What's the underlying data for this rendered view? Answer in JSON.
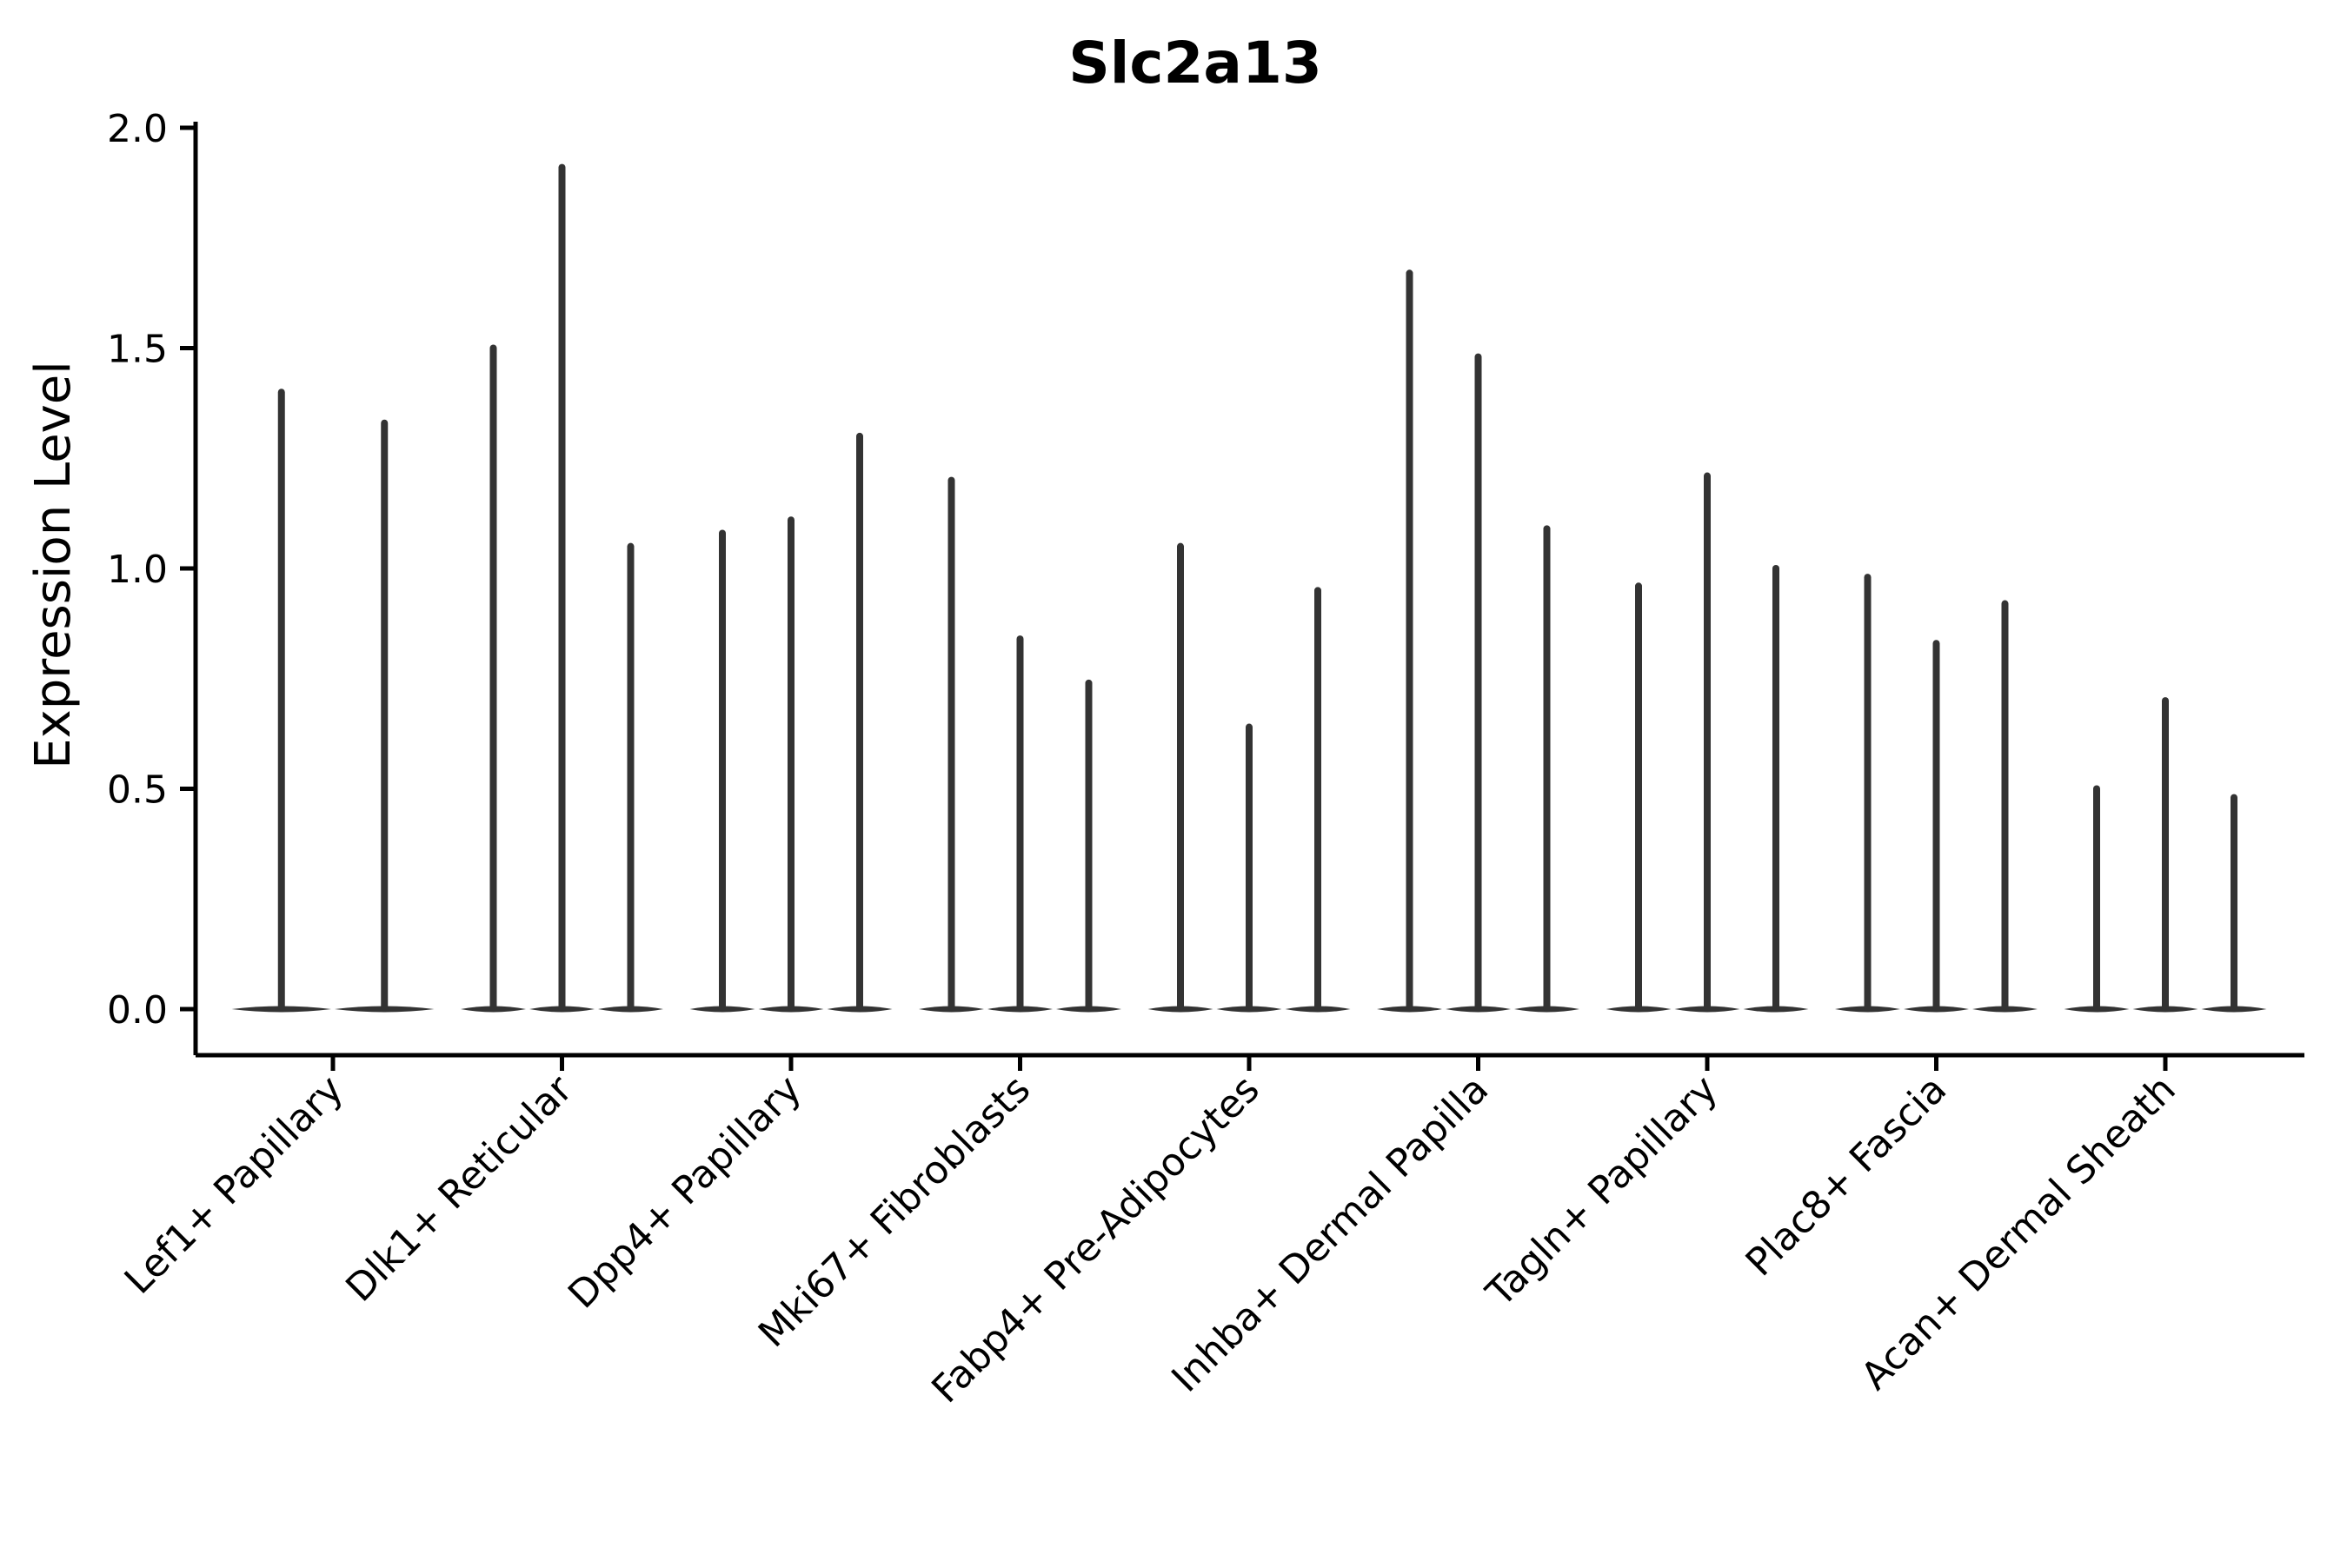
{
  "chart_data": {
    "type": "violin",
    "title": "Slc2a13",
    "xlabel": "",
    "ylabel": "Expression Level",
    "ylim": [
      0.0,
      2.0
    ],
    "yticks": [
      0.0,
      0.5,
      1.0,
      1.5,
      2.0
    ],
    "ytick_labels": [
      "0.0",
      "0.5",
      "1.0",
      "1.5",
      "2.0"
    ],
    "xtick_rotation": 45,
    "grid": false,
    "legend": "none",
    "categories": [
      "Lef1+ Papillary",
      "Dlk1+ Reticular",
      "Dpp4+ Papillary",
      "Mki67+ Fibroblasts",
      "Fabp4+ Pre-Adipocytes",
      "Inhba+ Dermal Papilla",
      "Tagln+ Papillary",
      "Plac8+ Fascia",
      "Acan+ Dermal Sheath"
    ],
    "groups": [
      {
        "label": "Lef1+ Papillary",
        "violin_max_values": [
          1.4,
          1.33
        ]
      },
      {
        "label": "Dlk1+ Reticular",
        "violin_max_values": [
          1.5,
          1.91,
          1.05
        ]
      },
      {
        "label": "Dpp4+ Papillary",
        "violin_max_values": [
          1.08,
          1.11,
          1.3
        ]
      },
      {
        "label": "Mki67+ Fibroblasts",
        "violin_max_values": [
          1.2,
          0.84,
          0.74
        ]
      },
      {
        "label": "Fabp4+ Pre-Adipocytes",
        "violin_max_values": [
          1.05,
          0.64,
          0.95
        ]
      },
      {
        "label": "Inhba+ Dermal Papilla",
        "violin_max_values": [
          1.67,
          1.48,
          1.09
        ]
      },
      {
        "label": "Tagln+ Papillary",
        "violin_max_values": [
          0.96,
          1.21,
          1.0
        ]
      },
      {
        "label": "Plac8+ Fascia",
        "violin_max_values": [
          0.98,
          0.83,
          0.92
        ]
      },
      {
        "label": "Acan+ Dermal Sheath",
        "violin_max_values": [
          0.5,
          0.7,
          0.48
        ]
      }
    ],
    "violin_baseline_value": 0.0,
    "colors": {
      "violin": "#333333",
      "axis": "#000000",
      "text": "#000000",
      "background": "#ffffff"
    }
  }
}
